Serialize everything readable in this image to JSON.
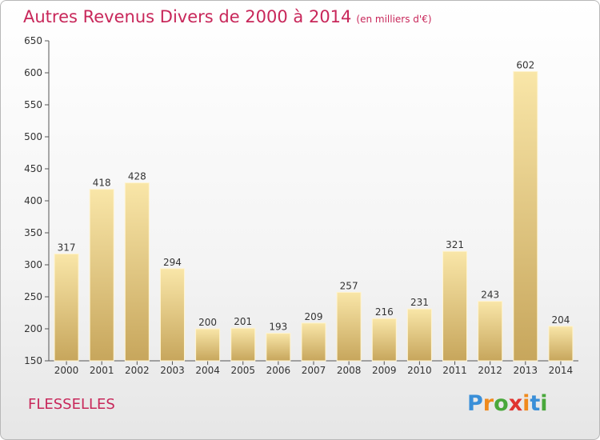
{
  "title": "Autres Revenus Divers de 2000 à 2014",
  "unit": "(en milliers d'€)",
  "commune": "FLESSELLES",
  "logo": {
    "letters": [
      "P",
      "r",
      "o",
      "x",
      "i",
      "t",
      "i"
    ],
    "colors": [
      "#3a8fd8",
      "#f08a1c",
      "#49a83b",
      "#e0342f",
      "#f08a1c",
      "#3a8fd8",
      "#49a83b"
    ]
  },
  "colors": {
    "title": "#c8275a",
    "bar_light": "#f7e0a0",
    "bar_dark": "#c9a85f"
  },
  "chart_data": {
    "type": "bar",
    "title": "Autres Revenus Divers de 2000 à 2014",
    "subtitle": "(en milliers d'€)",
    "categories": [
      "2000",
      "2001",
      "2002",
      "2003",
      "2004",
      "2005",
      "2006",
      "2007",
      "2008",
      "2009",
      "2010",
      "2011",
      "2012",
      "2013",
      "2014"
    ],
    "values": [
      317,
      418,
      428,
      294,
      200,
      201,
      193,
      209,
      257,
      216,
      231,
      321,
      243,
      602,
      204
    ],
    "ylim": [
      150,
      650
    ],
    "yticks": [
      150,
      200,
      250,
      300,
      350,
      400,
      450,
      500,
      550,
      600,
      650
    ],
    "grid": false,
    "xlabel": "",
    "ylabel": ""
  }
}
